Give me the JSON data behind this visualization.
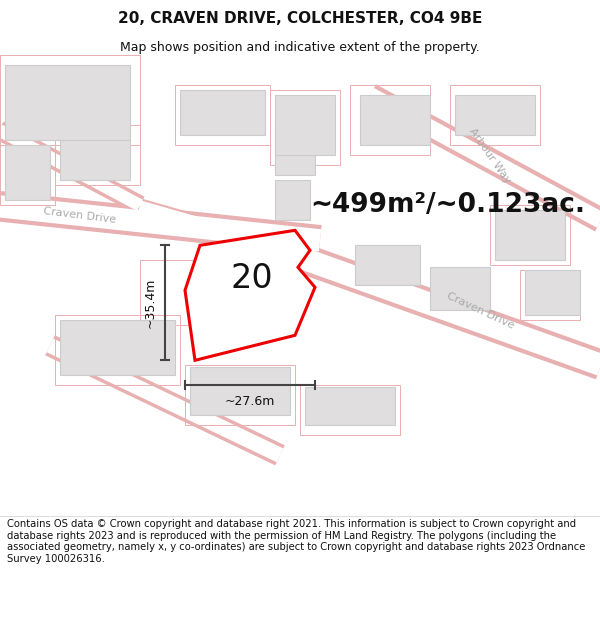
{
  "title_line1": "20, CRAVEN DRIVE, COLCHESTER, CO4 9BE",
  "title_line2": "Map shows position and indicative extent of the property.",
  "area_text": "~499m²/~0.123ac.",
  "label_number": "20",
  "dim_height": "~35.4m",
  "dim_width": "~27.6m",
  "footer_text": "Contains OS data © Crown copyright and database right 2021. This information is subject to Crown copyright and database rights 2023 and is reproduced with the permission of HM Land Registry. The polygons (including the associated geometry, namely x, y co-ordinates) are subject to Crown copyright and database rights 2023 Ordnance Survey 100026316.",
  "bg_color": "#ffffff",
  "map_bg": "#f0f0f0",
  "road_stroke": "#e8b0b0",
  "road_fill": "#ffffff",
  "plot_outline_color": "#ee0000",
  "plot_fill": "#ffffff",
  "building_fill": "#e0dede",
  "building_stroke": "#cccccc",
  "parcel_stroke": "#e8b0b0",
  "street_label_color": "#aaaaaa",
  "dim_line_color": "#444444",
  "title_fontsize": 11,
  "subtitle_fontsize": 9,
  "area_fontsize": 19,
  "label_fontsize": 24,
  "footer_fontsize": 7.2,
  "street_fontsize": 8
}
